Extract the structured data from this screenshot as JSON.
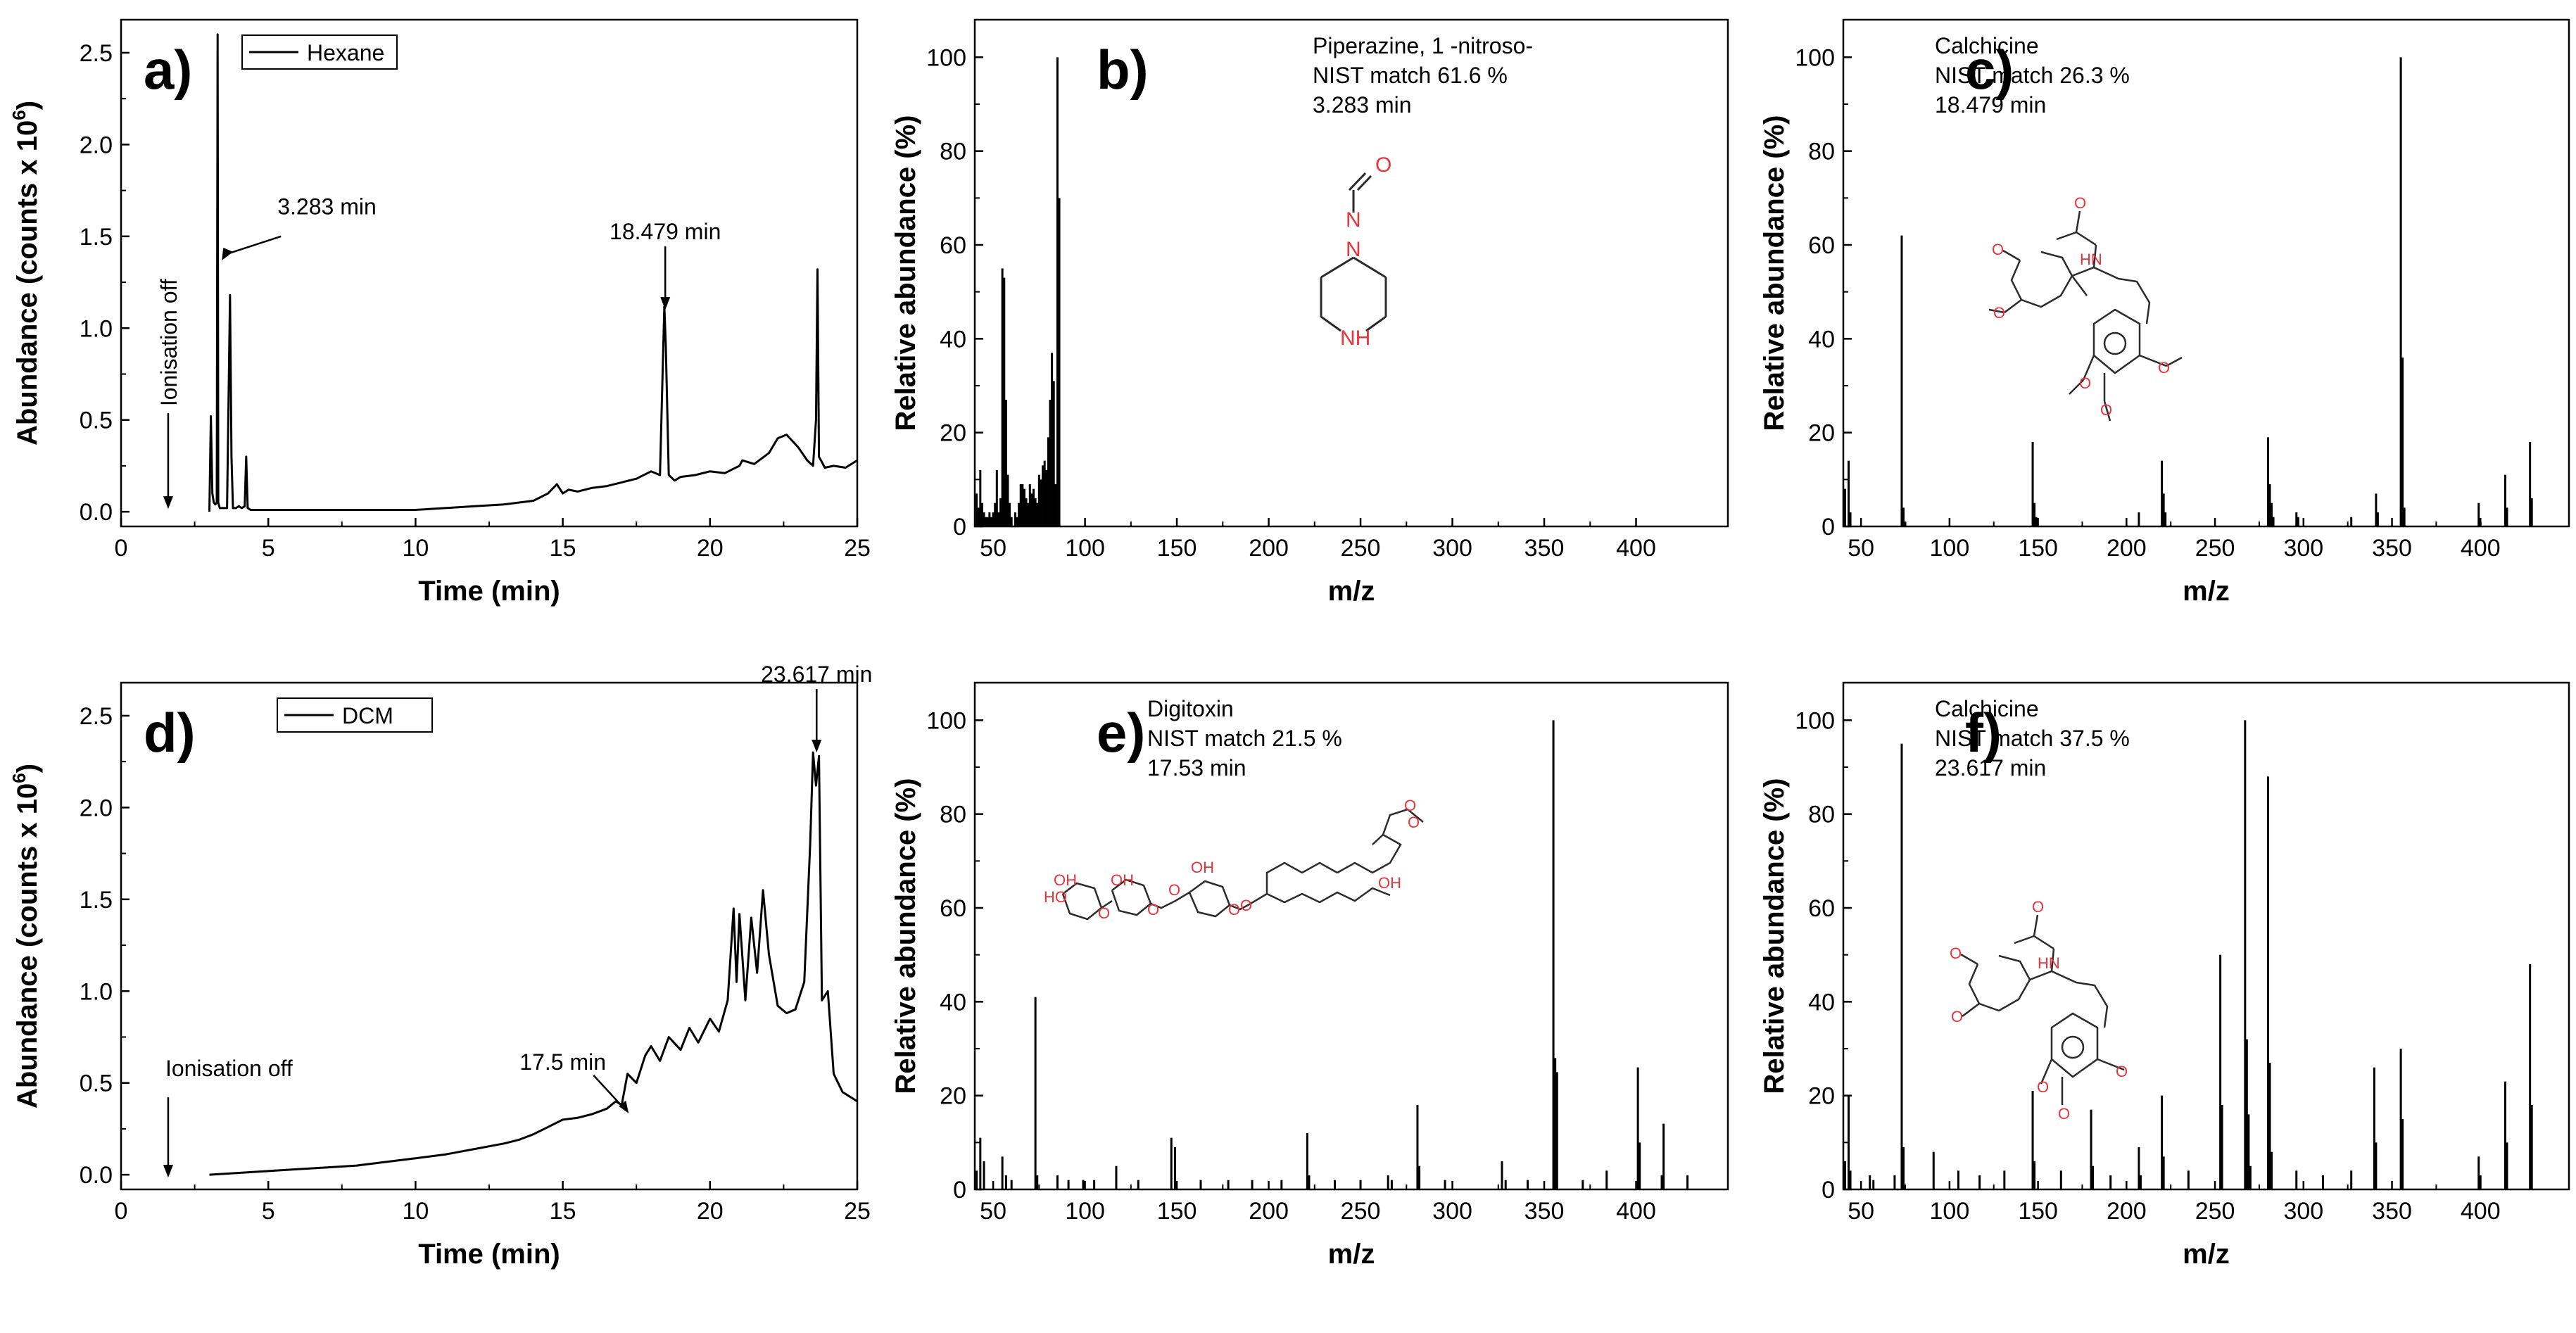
{
  "figure": {
    "panels": [
      "a)",
      "b)",
      "c)",
      "d)",
      "e)",
      "f)"
    ]
  },
  "chart_data": [
    {
      "id": "a",
      "type": "line",
      "panel_label": "a)",
      "xlabel": "Time (min)",
      "ylabel": "Abundance (counts x 10",
      "ylabel_sup": "6",
      "ylabel_close": ")",
      "xlim": [
        0,
        25
      ],
      "ylim": [
        -0.08,
        2.68
      ],
      "xticks": [
        0,
        5,
        10,
        15,
        20,
        25
      ],
      "xtick_labels": [
        "0",
        "5",
        "10",
        "15",
        "20",
        "25"
      ],
      "yticks": [
        0.0,
        0.5,
        1.0,
        1.5,
        2.0,
        2.5
      ],
      "ytick_labels": [
        "0.0",
        "0.5",
        "1.0",
        "1.5",
        "2.0",
        "2.5"
      ],
      "legend": "Hexane",
      "legend_position": "top-left",
      "annotations": [
        {
          "text": "3.283 min",
          "x": 3.28,
          "y": 2.6
        },
        {
          "text": "18.479 min",
          "x": 18.48,
          "y": 1.1
        },
        {
          "text": "Ionisation off",
          "x": 1.6,
          "y": 0.0
        }
      ],
      "series": [
        {
          "name": "Hexane",
          "x": [
            3.0,
            3.05,
            3.1,
            3.15,
            3.2,
            3.25,
            3.28,
            3.3,
            3.35,
            3.4,
            3.5,
            3.6,
            3.7,
            3.75,
            3.8,
            3.9,
            4.0,
            4.1,
            4.2,
            4.25,
            4.3,
            4.4,
            4.5,
            5.0,
            6.0,
            7.0,
            8.0,
            9.0,
            10.0,
            11.0,
            12.0,
            13.0,
            14.0,
            14.5,
            14.8,
            15.0,
            15.2,
            15.5,
            16.0,
            16.5,
            17.0,
            17.5,
            18.0,
            18.3,
            18.45,
            18.5,
            18.6,
            18.8,
            19.0,
            19.5,
            20.0,
            20.5,
            21.0,
            21.1,
            21.5,
            22.0,
            22.3,
            22.6,
            23.0,
            23.3,
            23.5,
            23.6,
            23.65,
            23.7,
            23.9,
            24.2,
            24.6,
            25.0
          ],
          "y": [
            0.0,
            0.52,
            0.1,
            0.05,
            0.04,
            0.05,
            2.6,
            0.05,
            0.02,
            0.02,
            0.02,
            0.02,
            1.18,
            0.3,
            0.02,
            0.02,
            0.03,
            0.02,
            0.03,
            0.3,
            0.02,
            0.01,
            0.01,
            0.01,
            0.01,
            0.01,
            0.01,
            0.01,
            0.01,
            0.02,
            0.03,
            0.04,
            0.06,
            0.1,
            0.15,
            0.1,
            0.12,
            0.11,
            0.13,
            0.14,
            0.16,
            0.18,
            0.22,
            0.2,
            1.12,
            0.9,
            0.2,
            0.17,
            0.19,
            0.2,
            0.22,
            0.21,
            0.25,
            0.28,
            0.26,
            0.32,
            0.4,
            0.42,
            0.35,
            0.28,
            0.25,
            0.5,
            1.32,
            0.3,
            0.24,
            0.25,
            0.24,
            0.28
          ]
        }
      ]
    },
    {
      "id": "b",
      "type": "bar",
      "panel_label": "b)",
      "xlabel": "m/z",
      "ylabel": "Relative abundance (%)",
      "xlim": [
        40,
        450
      ],
      "ylim": [
        0,
        108
      ],
      "xticks": [
        50,
        100,
        150,
        200,
        250,
        300,
        350,
        400
      ],
      "xtick_labels": [
        "50",
        "100",
        "150",
        "200",
        "250",
        "300",
        "350",
        "400"
      ],
      "yticks": [
        0,
        20,
        40,
        60,
        80,
        100
      ],
      "ytick_labels": [
        "0",
        "20",
        "40",
        "60",
        "80",
        "100"
      ],
      "info": [
        "Piperazine, 1 -nitroso-",
        "NIST match 61.6 %",
        "3.283 min"
      ],
      "structure_atoms": [
        "O",
        "N",
        "N",
        "NH"
      ],
      "peaks_mz": [
        41,
        42,
        43,
        44,
        45,
        46,
        47,
        48,
        49,
        50,
        51,
        52,
        53,
        54,
        55,
        56,
        57,
        58,
        59,
        60,
        62,
        63,
        64,
        65,
        66,
        67,
        68,
        69,
        70,
        71,
        72,
        73,
        74,
        75,
        76,
        77,
        78,
        79,
        80,
        81,
        82,
        83,
        84,
        85,
        86
      ],
      "peaks_int": [
        7,
        4,
        12,
        5,
        3,
        2,
        2,
        3,
        2,
        3,
        5,
        12,
        3,
        6,
        55,
        53,
        27,
        11,
        5,
        2,
        3,
        2,
        5,
        9,
        9,
        8,
        6,
        5,
        9,
        7,
        8,
        6,
        5,
        11,
        10,
        13,
        14,
        12,
        19,
        27,
        37,
        31,
        9,
        100,
        70
      ]
    },
    {
      "id": "c",
      "type": "bar",
      "panel_label": "c)",
      "xlabel": "m/z",
      "ylabel": "Relative abundance (%)",
      "xlim": [
        40,
        450
      ],
      "ylim": [
        0,
        108
      ],
      "xticks": [
        50,
        100,
        150,
        200,
        250,
        300,
        350,
        400
      ],
      "xtick_labels": [
        "50",
        "100",
        "150",
        "200",
        "250",
        "300",
        "350",
        "400"
      ],
      "yticks": [
        0,
        20,
        40,
        60,
        80,
        100
      ],
      "ytick_labels": [
        "0",
        "20",
        "40",
        "60",
        "80",
        "100"
      ],
      "info": [
        "Calchicine",
        "NIST match 26.3 %",
        "18.479 min"
      ],
      "structure_atoms": [
        "O",
        "HN",
        "O",
        "O",
        "O",
        "O",
        "O"
      ],
      "peaks_mz": [
        41,
        43,
        44,
        73,
        74,
        75,
        147,
        148,
        149,
        207,
        220,
        221,
        222,
        280,
        281,
        282,
        283,
        296,
        297,
        327,
        341,
        342,
        355,
        356,
        357,
        399,
        400,
        414,
        415,
        428,
        429
      ],
      "peaks_int": [
        8,
        14,
        3,
        62,
        4,
        1,
        18,
        5,
        2,
        3,
        14,
        7,
        3,
        19,
        9,
        5,
        2,
        3,
        2,
        2,
        7,
        3,
        100,
        36,
        4,
        5,
        1,
        11,
        4,
        18,
        6
      ]
    },
    {
      "id": "d",
      "type": "line",
      "panel_label": "d)",
      "xlabel": "Time (min)",
      "ylabel": "Abundance (counts x 10",
      "ylabel_sup": "6",
      "ylabel_close": ")",
      "xlim": [
        0,
        25
      ],
      "ylim": [
        -0.08,
        2.68
      ],
      "xticks": [
        0,
        5,
        10,
        15,
        20,
        25
      ],
      "xtick_labels": [
        "0",
        "5",
        "10",
        "15",
        "20",
        "25"
      ],
      "yticks": [
        0.0,
        0.5,
        1.0,
        1.5,
        2.0,
        2.5
      ],
      "ytick_labels": [
        "0.0",
        "0.5",
        "1.0",
        "1.5",
        "2.0",
        "2.5"
      ],
      "legend": "DCM",
      "legend_position": "top-left",
      "annotations": [
        {
          "text": "23.617 min",
          "x": 23.62,
          "y": 2.3
        },
        {
          "text": "17.5 min",
          "x": 17.0,
          "y": 0.35
        },
        {
          "text": "Ionisation off",
          "x": 1.6,
          "y": 0.0
        }
      ],
      "series": [
        {
          "name": "DCM",
          "x": [
            3.0,
            4.0,
            5.0,
            6.0,
            7.0,
            8.0,
            9.0,
            10.0,
            11.0,
            12.0,
            13.0,
            13.5,
            14.0,
            14.5,
            15.0,
            15.5,
            16.0,
            16.5,
            16.8,
            17.0,
            17.2,
            17.5,
            17.8,
            18.0,
            18.3,
            18.6,
            19.0,
            19.3,
            19.6,
            20.0,
            20.3,
            20.6,
            20.8,
            20.9,
            21.0,
            21.2,
            21.4,
            21.6,
            21.8,
            22.0,
            22.3,
            22.6,
            22.9,
            23.2,
            23.4,
            23.5,
            23.6,
            23.7,
            23.8,
            24.0,
            24.2,
            24.5,
            25.0
          ],
          "y": [
            0.0,
            0.01,
            0.02,
            0.03,
            0.04,
            0.05,
            0.07,
            0.09,
            0.11,
            0.14,
            0.17,
            0.19,
            0.22,
            0.26,
            0.3,
            0.31,
            0.33,
            0.36,
            0.4,
            0.38,
            0.55,
            0.5,
            0.65,
            0.7,
            0.62,
            0.75,
            0.68,
            0.8,
            0.72,
            0.85,
            0.78,
            0.95,
            1.45,
            1.05,
            1.42,
            0.95,
            1.4,
            1.1,
            1.55,
            1.2,
            0.92,
            0.88,
            0.9,
            1.05,
            1.8,
            2.3,
            2.12,
            2.28,
            0.95,
            1.0,
            0.55,
            0.45,
            0.4
          ]
        }
      ]
    },
    {
      "id": "e",
      "type": "bar",
      "panel_label": "e)",
      "xlabel": "m/z",
      "ylabel": "Relative abundance (%)",
      "xlim": [
        40,
        450
      ],
      "ylim": [
        0,
        108
      ],
      "xticks": [
        50,
        100,
        150,
        200,
        250,
        300,
        350,
        400
      ],
      "xtick_labels": [
        "50",
        "100",
        "150",
        "200",
        "250",
        "300",
        "350",
        "400"
      ],
      "yticks": [
        0,
        20,
        40,
        60,
        80,
        100
      ],
      "ytick_labels": [
        "0",
        "20",
        "40",
        "60",
        "80",
        "100"
      ],
      "info": [
        "Digitoxin",
        "NIST match 21.5 %",
        "17.53 min"
      ],
      "structure_atoms": [
        "O",
        "O",
        "OH",
        "O",
        "OH",
        "HO",
        "O",
        "O",
        "O",
        "O",
        "O",
        "O",
        "OH"
      ],
      "peaks_mz": [
        41,
        43,
        45,
        55,
        57,
        60,
        73,
        74,
        85,
        91,
        99,
        105,
        117,
        129,
        147,
        149,
        163,
        178,
        191,
        207,
        221,
        222,
        236,
        250,
        265,
        267,
        281,
        282,
        296,
        327,
        329,
        341,
        355,
        356,
        357,
        371,
        384,
        401,
        402,
        414,
        415,
        428
      ],
      "peaks_int": [
        4,
        11,
        6,
        7,
        3,
        2,
        41,
        3,
        3,
        2,
        2,
        2,
        5,
        2,
        11,
        9,
        2,
        2,
        2,
        2,
        12,
        3,
        2,
        2,
        3,
        2,
        18,
        5,
        2,
        6,
        2,
        2,
        100,
        28,
        25,
        2,
        4,
        26,
        10,
        3,
        14,
        3
      ]
    },
    {
      "id": "f",
      "type": "bar",
      "panel_label": "f)",
      "xlabel": "m/z",
      "ylabel": "Relative abundance (%)",
      "xlim": [
        40,
        450
      ],
      "ylim": [
        0,
        108
      ],
      "xticks": [
        50,
        100,
        150,
        200,
        250,
        300,
        350,
        400
      ],
      "xtick_labels": [
        "50",
        "100",
        "150",
        "200",
        "250",
        "300",
        "350",
        "400"
      ],
      "yticks": [
        0,
        20,
        40,
        60,
        80,
        100
      ],
      "ytick_labels": [
        "0",
        "20",
        "40",
        "60",
        "80",
        "100"
      ],
      "info": [
        "Calchicine",
        "NIST match 37.5 %",
        "23.617 min"
      ],
      "structure_atoms": [
        "O",
        "HN",
        "O",
        "O",
        "O",
        "O",
        "O"
      ],
      "peaks_mz": [
        41,
        43,
        44,
        55,
        57,
        69,
        73,
        74,
        91,
        105,
        117,
        131,
        147,
        148,
        163,
        180,
        181,
        191,
        207,
        208,
        220,
        221,
        235,
        253,
        254,
        267,
        268,
        269,
        270,
        280,
        281,
        282,
        296,
        311,
        327,
        340,
        341,
        355,
        356,
        399,
        400,
        414,
        415,
        428,
        429
      ],
      "peaks_int": [
        6,
        20,
        4,
        3,
        2,
        3,
        95,
        9,
        8,
        4,
        3,
        4,
        21,
        6,
        4,
        17,
        5,
        3,
        9,
        3,
        20,
        7,
        4,
        50,
        18,
        100,
        32,
        16,
        5,
        88,
        27,
        8,
        4,
        3,
        4,
        26,
        10,
        30,
        15,
        7,
        3,
        23,
        10,
        48,
        18
      ]
    }
  ]
}
